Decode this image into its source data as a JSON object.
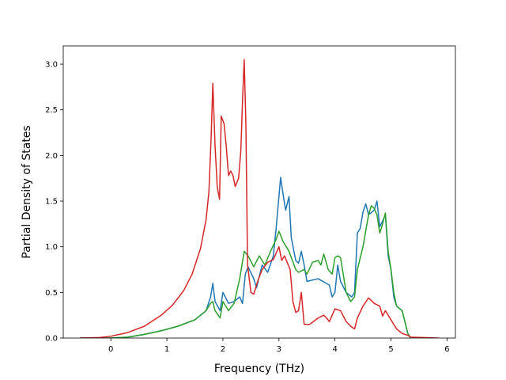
{
  "chart_data": {
    "type": "line",
    "title": "",
    "xlabel": "Frequency (THz)",
    "ylabel": "Partial Density of States",
    "xlim": [
      -0.85,
      6.15
    ],
    "ylim": [
      0.0,
      3.2
    ],
    "xticks": [
      0,
      1,
      2,
      3,
      4,
      5,
      6
    ],
    "xtick_labels": [
      "0",
      "1",
      "2",
      "3",
      "4",
      "5",
      "6"
    ],
    "yticks": [
      0.0,
      0.5,
      1.0,
      1.5,
      2.0,
      2.5,
      3.0
    ],
    "ytick_labels": [
      "0.0",
      "0.5",
      "1.0",
      "1.5",
      "2.0",
      "2.5",
      "3.0"
    ],
    "grid": false,
    "legend": "none",
    "series": [
      {
        "color": "#1f77b4",
        "points": [
          [
            -0.55,
            0
          ],
          [
            0,
            0
          ],
          [
            0.3,
            0.01
          ],
          [
            0.6,
            0.04
          ],
          [
            0.9,
            0.08
          ],
          [
            1.2,
            0.13
          ],
          [
            1.5,
            0.2
          ],
          [
            1.7,
            0.3
          ],
          [
            1.78,
            0.45
          ],
          [
            1.82,
            0.6
          ],
          [
            1.86,
            0.4
          ],
          [
            1.95,
            0.3
          ],
          [
            2.0,
            0.5
          ],
          [
            2.1,
            0.38
          ],
          [
            2.2,
            0.4
          ],
          [
            2.3,
            0.45
          ],
          [
            2.35,
            0.38
          ],
          [
            2.4,
            0.7
          ],
          [
            2.45,
            0.78
          ],
          [
            2.55,
            0.65
          ],
          [
            2.6,
            0.55
          ],
          [
            2.7,
            0.8
          ],
          [
            2.8,
            0.72
          ],
          [
            2.9,
            0.9
          ],
          [
            2.95,
            1.2
          ],
          [
            3.0,
            1.55
          ],
          [
            3.03,
            1.76
          ],
          [
            3.08,
            1.55
          ],
          [
            3.12,
            1.4
          ],
          [
            3.18,
            1.55
          ],
          [
            3.22,
            1.1
          ],
          [
            3.3,
            0.85
          ],
          [
            3.35,
            0.82
          ],
          [
            3.4,
            0.95
          ],
          [
            3.45,
            0.8
          ],
          [
            3.5,
            0.62
          ],
          [
            3.7,
            0.65
          ],
          [
            3.9,
            0.58
          ],
          [
            3.95,
            0.45
          ],
          [
            4.0,
            0.5
          ],
          [
            4.05,
            0.8
          ],
          [
            4.1,
            0.62
          ],
          [
            4.2,
            0.5
          ],
          [
            4.3,
            0.45
          ],
          [
            4.35,
            0.5
          ],
          [
            4.4,
            1.15
          ],
          [
            4.45,
            1.2
          ],
          [
            4.5,
            1.38
          ],
          [
            4.55,
            1.47
          ],
          [
            4.6,
            1.35
          ],
          [
            4.7,
            1.4
          ],
          [
            4.75,
            1.5
          ],
          [
            4.8,
            1.22
          ],
          [
            4.85,
            1.28
          ],
          [
            4.9,
            1.35
          ],
          [
            4.95,
            0.9
          ],
          [
            5.0,
            0.75
          ],
          [
            5.05,
            0.45
          ],
          [
            5.1,
            0.35
          ],
          [
            5.2,
            0.3
          ],
          [
            5.3,
            0.05
          ],
          [
            5.35,
            0.0
          ]
        ]
      },
      {
        "color": "#2ca02c",
        "points": [
          [
            -0.55,
            0
          ],
          [
            0,
            0
          ],
          [
            0.3,
            0.01
          ],
          [
            0.6,
            0.04
          ],
          [
            0.9,
            0.08
          ],
          [
            1.2,
            0.13
          ],
          [
            1.5,
            0.2
          ],
          [
            1.7,
            0.3
          ],
          [
            1.78,
            0.38
          ],
          [
            1.82,
            0.4
          ],
          [
            1.86,
            0.3
          ],
          [
            1.95,
            0.22
          ],
          [
            2.0,
            0.4
          ],
          [
            2.1,
            0.3
          ],
          [
            2.2,
            0.38
          ],
          [
            2.3,
            0.65
          ],
          [
            2.38,
            0.95
          ],
          [
            2.45,
            0.9
          ],
          [
            2.55,
            0.78
          ],
          [
            2.65,
            0.9
          ],
          [
            2.75,
            0.8
          ],
          [
            2.85,
            0.95
          ],
          [
            2.95,
            1.08
          ],
          [
            3.0,
            1.17
          ],
          [
            3.08,
            1.05
          ],
          [
            3.18,
            0.95
          ],
          [
            3.3,
            0.75
          ],
          [
            3.35,
            0.72
          ],
          [
            3.45,
            0.75
          ],
          [
            3.5,
            0.7
          ],
          [
            3.6,
            0.83
          ],
          [
            3.7,
            0.85
          ],
          [
            3.75,
            0.8
          ],
          [
            3.8,
            0.92
          ],
          [
            3.88,
            0.75
          ],
          [
            3.95,
            0.7
          ],
          [
            4.0,
            0.88
          ],
          [
            4.05,
            0.9
          ],
          [
            4.1,
            0.88
          ],
          [
            4.2,
            0.5
          ],
          [
            4.28,
            0.4
          ],
          [
            4.35,
            0.45
          ],
          [
            4.4,
            0.75
          ],
          [
            4.5,
            1.0
          ],
          [
            4.6,
            1.35
          ],
          [
            4.65,
            1.45
          ],
          [
            4.7,
            1.42
          ],
          [
            4.75,
            1.35
          ],
          [
            4.8,
            1.15
          ],
          [
            4.85,
            1.25
          ],
          [
            4.9,
            1.37
          ],
          [
            4.95,
            0.95
          ],
          [
            5.0,
            0.75
          ],
          [
            5.05,
            0.5
          ],
          [
            5.1,
            0.35
          ],
          [
            5.2,
            0.3
          ],
          [
            5.3,
            0.05
          ],
          [
            5.35,
            0.0
          ]
        ]
      },
      {
        "color": "#d62728",
        "points": [
          [
            -0.55,
            0
          ],
          [
            -0.2,
            0.005
          ],
          [
            0,
            0.02
          ],
          [
            0.3,
            0.06
          ],
          [
            0.6,
            0.13
          ],
          [
            0.9,
            0.25
          ],
          [
            1.1,
            0.36
          ],
          [
            1.3,
            0.52
          ],
          [
            1.45,
            0.7
          ],
          [
            1.6,
            0.98
          ],
          [
            1.7,
            1.3
          ],
          [
            1.75,
            1.6
          ],
          [
            1.79,
            2.2
          ],
          [
            1.82,
            2.79
          ],
          [
            1.86,
            2.1
          ],
          [
            1.9,
            1.65
          ],
          [
            1.94,
            1.52
          ],
          [
            1.97,
            2.43
          ],
          [
            2.02,
            2.35
          ],
          [
            2.06,
            2.1
          ],
          [
            2.1,
            1.78
          ],
          [
            2.14,
            1.83
          ],
          [
            2.18,
            1.78
          ],
          [
            2.22,
            1.66
          ],
          [
            2.28,
            1.75
          ],
          [
            2.32,
            2.05
          ],
          [
            2.35,
            2.6
          ],
          [
            2.38,
            3.05
          ],
          [
            2.41,
            2.35
          ],
          [
            2.44,
            0.8
          ],
          [
            2.5,
            0.5
          ],
          [
            2.55,
            0.48
          ],
          [
            2.62,
            0.62
          ],
          [
            2.7,
            0.75
          ],
          [
            2.8,
            0.83
          ],
          [
            2.9,
            0.86
          ],
          [
            3.0,
            1.0
          ],
          [
            3.05,
            0.85
          ],
          [
            3.1,
            0.9
          ],
          [
            3.2,
            0.75
          ],
          [
            3.25,
            0.4
          ],
          [
            3.3,
            0.28
          ],
          [
            3.35,
            0.3
          ],
          [
            3.4,
            0.5
          ],
          [
            3.45,
            0.15
          ],
          [
            3.55,
            0.15
          ],
          [
            3.7,
            0.22
          ],
          [
            3.8,
            0.25
          ],
          [
            3.85,
            0.22
          ],
          [
            3.9,
            0.18
          ],
          [
            3.95,
            0.25
          ],
          [
            4.0,
            0.32
          ],
          [
            4.1,
            0.3
          ],
          [
            4.2,
            0.18
          ],
          [
            4.3,
            0.12
          ],
          [
            4.35,
            0.1
          ],
          [
            4.4,
            0.22
          ],
          [
            4.5,
            0.35
          ],
          [
            4.6,
            0.44
          ],
          [
            4.7,
            0.38
          ],
          [
            4.8,
            0.35
          ],
          [
            4.85,
            0.24
          ],
          [
            4.9,
            0.3
          ],
          [
            5.0,
            0.2
          ],
          [
            5.1,
            0.1
          ],
          [
            5.2,
            0.05
          ],
          [
            5.3,
            0.03
          ],
          [
            5.35,
            0.01
          ],
          [
            5.85,
            0.0
          ]
        ]
      }
    ]
  }
}
